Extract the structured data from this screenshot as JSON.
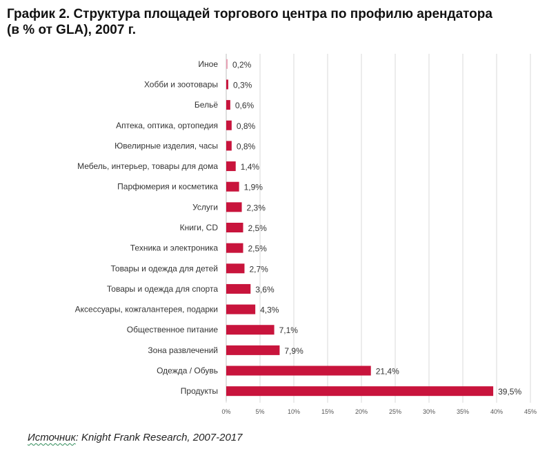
{
  "title": {
    "line1": "График 2. Структура площадей торгового центра по профилю арендатора",
    "line2": "(в % от GLA), 2007 г."
  },
  "source": {
    "label": "Источник",
    "text": ": Knight Frank Research, 2007-2017"
  },
  "chart_data": {
    "type": "bar",
    "orientation": "horizontal",
    "categories": [
      "Иное",
      "Хобби и зоотовары",
      "Бельё",
      "Аптека, оптика, ортопедия",
      "Ювелирные изделия, часы",
      "Мебель, интерьер, товары для дома",
      "Парфюмерия и косметика",
      "Услуги",
      "Книги, CD",
      "Техника и электроника",
      "Товары и одежда для детей",
      "Товары и одежда для спорта",
      "Аксессуары, кожгалантерея, подарки",
      "Общественное питание",
      "Зона развлечений",
      "Одежда / Обувь",
      "Продукты"
    ],
    "values": [
      0.2,
      0.3,
      0.6,
      0.8,
      0.8,
      1.4,
      1.9,
      2.3,
      2.5,
      2.5,
      2.7,
      3.6,
      4.3,
      7.1,
      7.9,
      21.4,
      39.5
    ],
    "data_labels": [
      "0,2%",
      "0,3%",
      "0,6%",
      "0,8%",
      "0,8%",
      "1,4%",
      "1,9%",
      "2,3%",
      "2,5%",
      "2,5%",
      "2,7%",
      "3,6%",
      "4,3%",
      "7,1%",
      "7,9%",
      "21,4%",
      "39,5%"
    ],
    "x_ticks": [
      0,
      5,
      10,
      15,
      20,
      25,
      30,
      35,
      40,
      45
    ],
    "x_tick_labels": [
      "0%",
      "5%",
      "10%",
      "15%",
      "20%",
      "25%",
      "30%",
      "35%",
      "40%",
      "45%"
    ],
    "xlim": [
      0,
      45
    ],
    "grid": "vertical",
    "legend": "none",
    "bar_color": "#c8143c",
    "first_bar_color": "#e8a0b4",
    "grid_color": "#d9d9d9"
  }
}
